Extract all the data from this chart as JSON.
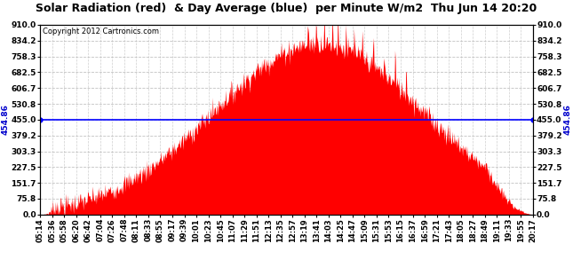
{
  "title": "Solar Radiation (red)  & Day Average (blue)  per Minute W/m2  Thu Jun 14 20:20",
  "copyright": "Copyright 2012 Cartronics.com",
  "day_average": 454.86,
  "y_ticks": [
    0.0,
    75.8,
    151.7,
    227.5,
    303.3,
    379.2,
    455.0,
    530.8,
    606.7,
    682.5,
    758.3,
    834.2,
    910.0
  ],
  "y_max": 910.0,
  "y_min": 0.0,
  "bg_color": "#ffffff",
  "plot_bg_color": "#ffffff",
  "grid_color": "#bbbbbb",
  "fill_color": "#ff0000",
  "avg_line_color": "#0000ff",
  "title_color": "#000000",
  "copyright_color": "#000000",
  "x_tick_labels": [
    "05:14",
    "05:36",
    "05:58",
    "06:20",
    "06:42",
    "07:04",
    "07:26",
    "07:48",
    "08:11",
    "08:33",
    "08:55",
    "09:17",
    "09:39",
    "10:01",
    "10:23",
    "10:45",
    "11:07",
    "11:29",
    "11:51",
    "12:13",
    "12:35",
    "12:57",
    "13:19",
    "13:41",
    "14:03",
    "14:25",
    "14:47",
    "15:09",
    "15:31",
    "15:53",
    "16:15",
    "16:37",
    "16:59",
    "17:21",
    "17:43",
    "18:05",
    "18:27",
    "18:49",
    "19:11",
    "19:33",
    "19:55",
    "20:17"
  ],
  "avg_label": "454.86",
  "title_fontsize": 9,
  "tick_fontsize": 6.5,
  "copyright_fontsize": 6,
  "avg_label_fontsize": 6.5
}
